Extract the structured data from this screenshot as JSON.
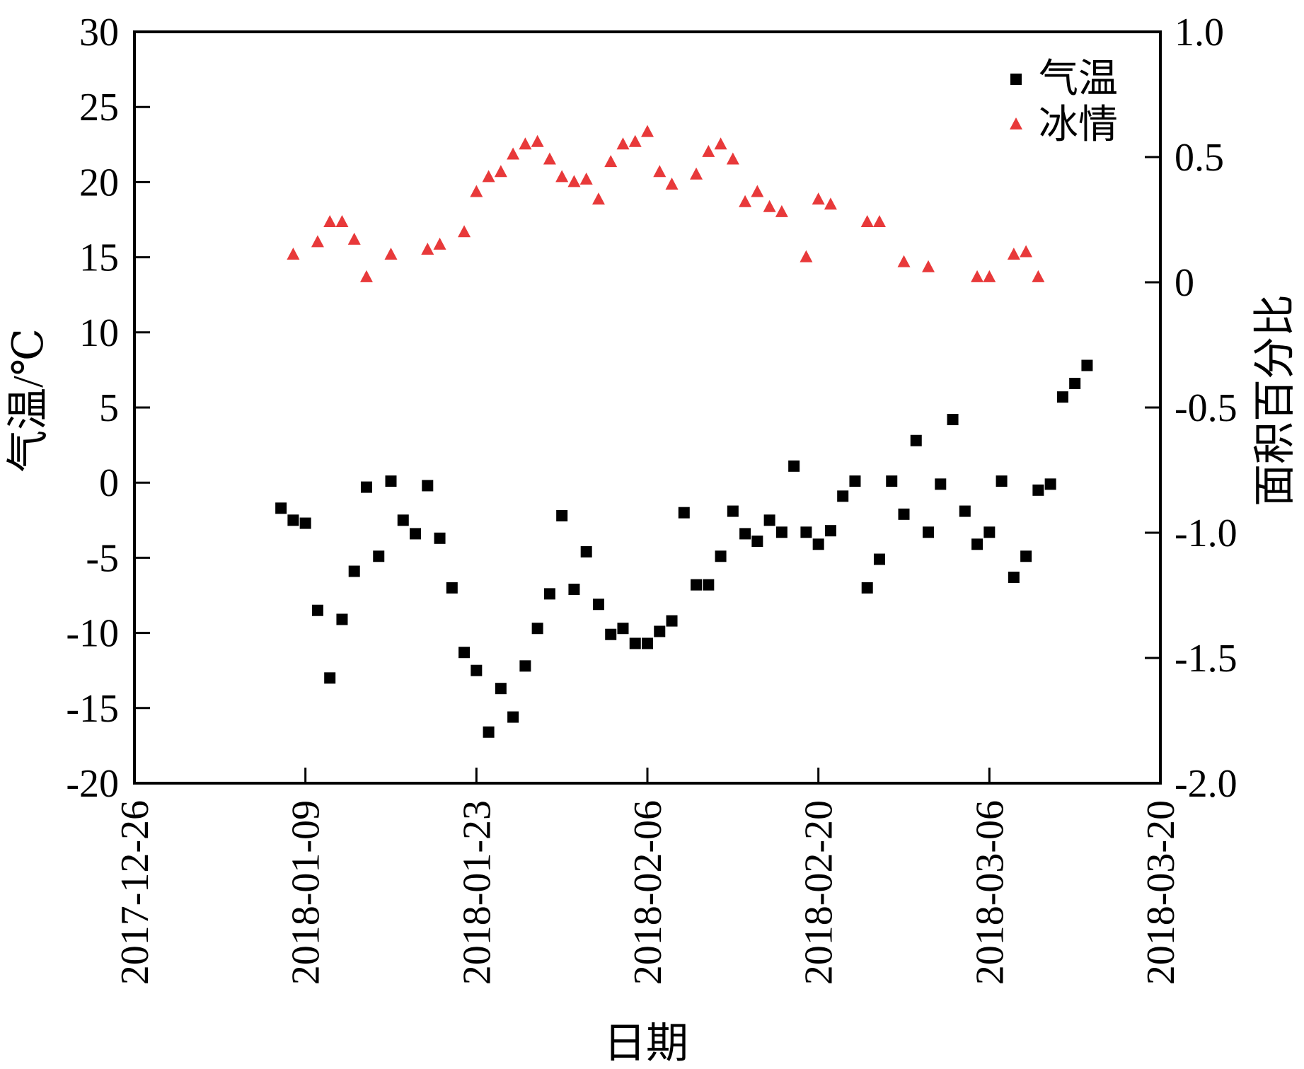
{
  "chart_data": {
    "type": "scatter",
    "xlabel": "日期",
    "ylabel_left": "气温/℃",
    "ylabel_right": "面积百分比",
    "x_axis": {
      "type": "date",
      "min": "2017-12-26",
      "max": "2018-03-20",
      "ticks": [
        "2017-12-26",
        "2018-01-09",
        "2018-01-23",
        "2018-02-06",
        "2018-02-20",
        "2018-03-06",
        "2018-03-20"
      ]
    },
    "y_left": {
      "min": -20,
      "max": 30,
      "ticks": [
        "-20",
        "-15",
        "-10",
        "-5",
        "0",
        "5",
        "10",
        "15",
        "20",
        "25",
        "30"
      ]
    },
    "y_right": {
      "min": -2.0,
      "max": 1.0,
      "ticks": [
        "-2.0",
        "-1.5",
        "-1.0",
        "-0.5",
        "0",
        "0.5",
        "1.0"
      ]
    },
    "grid": false,
    "legend_position": "top-right",
    "series": [
      {
        "name": "气温",
        "axis": "left",
        "marker": "square",
        "color": "#000000",
        "points": [
          [
            "2018-01-07",
            -1.7
          ],
          [
            "2018-01-08",
            -2.5
          ],
          [
            "2018-01-09",
            -2.7
          ],
          [
            "2018-01-10",
            -8.5
          ],
          [
            "2018-01-11",
            -13.0
          ],
          [
            "2018-01-12",
            -9.1
          ],
          [
            "2018-01-13",
            -5.9
          ],
          [
            "2018-01-14",
            -0.3
          ],
          [
            "2018-01-15",
            -4.9
          ],
          [
            "2018-01-16",
            0.1
          ],
          [
            "2018-01-17",
            -2.5
          ],
          [
            "2018-01-18",
            -3.4
          ],
          [
            "2018-01-19",
            -0.2
          ],
          [
            "2018-01-20",
            -3.7
          ],
          [
            "2018-01-21",
            -7.0
          ],
          [
            "2018-01-22",
            -11.3
          ],
          [
            "2018-01-23",
            -12.5
          ],
          [
            "2018-01-24",
            -16.6
          ],
          [
            "2018-01-25",
            -13.7
          ],
          [
            "2018-01-26",
            -15.6
          ],
          [
            "2018-01-27",
            -12.2
          ],
          [
            "2018-01-28",
            -9.7
          ],
          [
            "2018-01-29",
            -7.4
          ],
          [
            "2018-01-30",
            -2.2
          ],
          [
            "2018-01-31",
            -7.1
          ],
          [
            "2018-02-01",
            -4.6
          ],
          [
            "2018-02-02",
            -8.1
          ],
          [
            "2018-02-03",
            -10.1
          ],
          [
            "2018-02-04",
            -9.7
          ],
          [
            "2018-02-05",
            -10.7
          ],
          [
            "2018-02-06",
            -10.7
          ],
          [
            "2018-02-07",
            -9.9
          ],
          [
            "2018-02-08",
            -9.2
          ],
          [
            "2018-02-09",
            -2.0
          ],
          [
            "2018-02-10",
            -6.8
          ],
          [
            "2018-02-11",
            -6.8
          ],
          [
            "2018-02-12",
            -4.9
          ],
          [
            "2018-02-13",
            -1.9
          ],
          [
            "2018-02-14",
            -3.4
          ],
          [
            "2018-02-15",
            -3.9
          ],
          [
            "2018-02-16",
            -2.5
          ],
          [
            "2018-02-17",
            -3.3
          ],
          [
            "2018-02-18",
            1.1
          ],
          [
            "2018-02-19",
            -3.3
          ],
          [
            "2018-02-20",
            -4.1
          ],
          [
            "2018-02-21",
            -3.2
          ],
          [
            "2018-02-22",
            -0.9
          ],
          [
            "2018-02-23",
            0.1
          ],
          [
            "2018-02-24",
            -7.0
          ],
          [
            "2018-02-25",
            -5.1
          ],
          [
            "2018-02-26",
            0.1
          ],
          [
            "2018-02-27",
            -2.1
          ],
          [
            "2018-02-28",
            2.8
          ],
          [
            "2018-03-01",
            -3.3
          ],
          [
            "2018-03-02",
            -0.1
          ],
          [
            "2018-03-03",
            4.2
          ],
          [
            "2018-03-04",
            -1.9
          ],
          [
            "2018-03-05",
            -4.1
          ],
          [
            "2018-03-06",
            -3.3
          ],
          [
            "2018-03-07",
            0.1
          ],
          [
            "2018-03-08",
            -6.3
          ],
          [
            "2018-03-09",
            -4.9
          ],
          [
            "2018-03-10",
            -0.5
          ],
          [
            "2018-03-11",
            -0.1
          ],
          [
            "2018-03-12",
            5.7
          ],
          [
            "2018-03-13",
            6.6
          ],
          [
            "2018-03-14",
            7.8
          ]
        ]
      },
      {
        "name": "冰情",
        "axis": "right",
        "marker": "triangle",
        "color": "#e8393a",
        "points": [
          [
            "2018-01-08",
            0.11
          ],
          [
            "2018-01-10",
            0.16
          ],
          [
            "2018-01-11",
            0.24
          ],
          [
            "2018-01-12",
            0.24
          ],
          [
            "2018-01-13",
            0.17
          ],
          [
            "2018-01-14",
            0.02
          ],
          [
            "2018-01-16",
            0.11
          ],
          [
            "2018-01-19",
            0.13
          ],
          [
            "2018-01-20",
            0.15
          ],
          [
            "2018-01-22",
            0.2
          ],
          [
            "2018-01-23",
            0.36
          ],
          [
            "2018-01-24",
            0.42
          ],
          [
            "2018-01-25",
            0.44
          ],
          [
            "2018-01-26",
            0.51
          ],
          [
            "2018-01-27",
            0.55
          ],
          [
            "2018-01-28",
            0.56
          ],
          [
            "2018-01-29",
            0.49
          ],
          [
            "2018-01-30",
            0.42
          ],
          [
            "2018-01-31",
            0.4
          ],
          [
            "2018-02-01",
            0.41
          ],
          [
            "2018-02-02",
            0.33
          ],
          [
            "2018-02-03",
            0.48
          ],
          [
            "2018-02-04",
            0.55
          ],
          [
            "2018-02-05",
            0.56
          ],
          [
            "2018-02-06",
            0.6
          ],
          [
            "2018-02-07",
            0.44
          ],
          [
            "2018-02-08",
            0.39
          ],
          [
            "2018-02-10",
            0.43
          ],
          [
            "2018-02-11",
            0.52
          ],
          [
            "2018-02-12",
            0.55
          ],
          [
            "2018-02-13",
            0.49
          ],
          [
            "2018-02-14",
            0.32
          ],
          [
            "2018-02-15",
            0.36
          ],
          [
            "2018-02-16",
            0.3
          ],
          [
            "2018-02-17",
            0.28
          ],
          [
            "2018-02-19",
            0.1
          ],
          [
            "2018-02-20",
            0.33
          ],
          [
            "2018-02-21",
            0.31
          ],
          [
            "2018-02-24",
            0.24
          ],
          [
            "2018-02-25",
            0.24
          ],
          [
            "2018-02-27",
            0.08
          ],
          [
            "2018-03-01",
            0.06
          ],
          [
            "2018-03-05",
            0.02
          ],
          [
            "2018-03-06",
            0.02
          ],
          [
            "2018-03-08",
            0.11
          ],
          [
            "2018-03-09",
            0.12
          ],
          [
            "2018-03-10",
            0.02
          ]
        ]
      }
    ]
  }
}
